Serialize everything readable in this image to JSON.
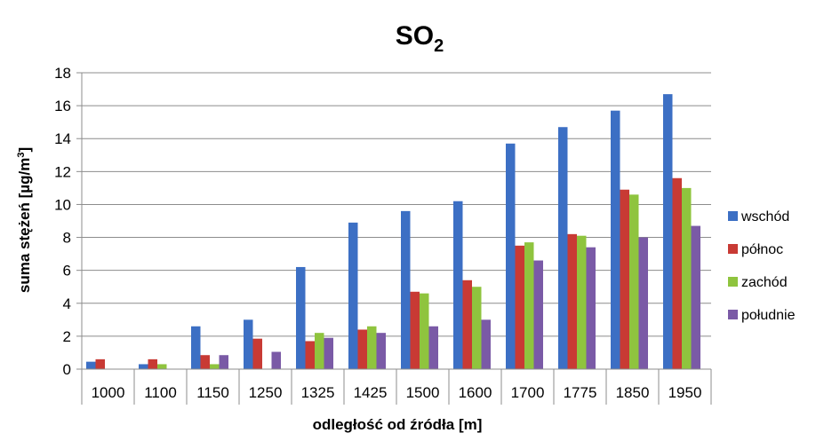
{
  "chart_data": {
    "type": "bar",
    "title": "SO",
    "title_subscript": "2",
    "xlabel": "odległość od źródła [m]",
    "ylabel": "suma stężeń [µg/m",
    "ylabel_superscript": "3",
    "ylabel_close": "]",
    "ylim": [
      0,
      18
    ],
    "yticks": [
      0,
      2,
      4,
      6,
      8,
      10,
      12,
      14,
      16,
      18
    ],
    "grid": true,
    "legend_position": "right",
    "categories": [
      "1000",
      "1100",
      "1150",
      "1250",
      "1325",
      "1425",
      "1500",
      "1600",
      "1700",
      "1775",
      "1850",
      "1950"
    ],
    "series": [
      {
        "name": "wschód",
        "color": "#3c6fc4",
        "values": [
          0.45,
          0.3,
          2.6,
          3.0,
          6.2,
          8.9,
          9.6,
          10.2,
          13.7,
          14.7,
          15.7,
          16.7
        ]
      },
      {
        "name": "północ",
        "color": "#c83a34",
        "values": [
          0.6,
          0.6,
          0.85,
          1.85,
          1.7,
          2.4,
          4.7,
          5.4,
          7.5,
          8.2,
          10.9,
          11.6
        ]
      },
      {
        "name": "zachód",
        "color": "#8fc43e",
        "values": [
          0,
          0.3,
          0.3,
          0,
          2.2,
          2.6,
          4.6,
          5.0,
          7.7,
          8.1,
          10.6,
          11.0
        ]
      },
      {
        "name": "południe",
        "color": "#7a5aa6",
        "values": [
          0,
          0,
          0.85,
          1.05,
          1.9,
          2.2,
          2.6,
          3.0,
          6.6,
          7.4,
          8.0,
          8.7
        ]
      }
    ]
  }
}
